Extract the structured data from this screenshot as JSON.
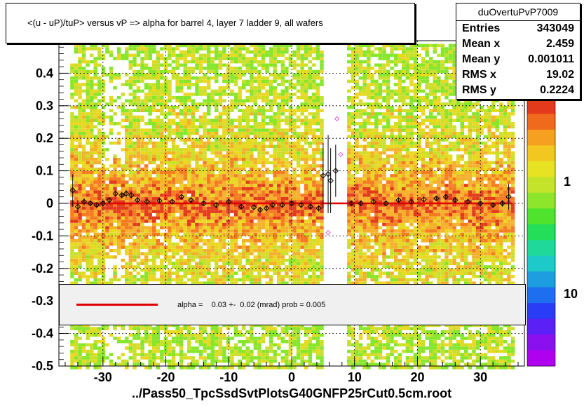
{
  "title": "<(u - uP)/tuP> versus   vP => alpha for barrel 4, layer 7 ladder 9, all wafers",
  "stats": {
    "name": "duOvertuPvP7009",
    "rows": [
      {
        "label": "Entries",
        "value": "343049"
      },
      {
        "label": "Mean x",
        "value": "2.459"
      },
      {
        "label": "Mean y",
        "value": "0.001011"
      },
      {
        "label": "RMS x",
        "value": "19.02"
      },
      {
        "label": "RMS y",
        "value": "0.2224"
      }
    ]
  },
  "fit_label": "alpha =    0.03 +-  0.02 (mrad) prob = 0.005",
  "filename": "../Pass50_TpcSsdSvtPlotsG40GNFP25rCut0.5cm.root",
  "chart_data": {
    "type": "heatmap",
    "xlim": [
      -37,
      37
    ],
    "ylim": [
      -0.5,
      0.5
    ],
    "xticks": [
      -30,
      -20,
      -10,
      0,
      10,
      20,
      30
    ],
    "yticks": [
      -0.5,
      -0.4,
      -0.3,
      -0.2,
      -0.1,
      0,
      0.1,
      0.2,
      0.3,
      0.4
    ],
    "ytick_labels": [
      "-0.5",
      "-0.4",
      "-0.3",
      "-0.2",
      "-0.1",
      "0",
      "0.1",
      "0.2",
      "0.3",
      "0.4"
    ],
    "colorbar_labels": [
      "1",
      "10"
    ],
    "grid": true,
    "fit_line": {
      "x": [
        -35,
        35
      ],
      "y": [
        0.0,
        0.0
      ],
      "color": "#e00000"
    },
    "profile_points": [
      {
        "x": -34.8,
        "y": 0.04,
        "err": 0.05
      },
      {
        "x": -34,
        "y": -0.01,
        "err": 0.02
      },
      {
        "x": -33,
        "y": 0.005,
        "err": 0.01
      },
      {
        "x": -32,
        "y": 0.0,
        "err": 0.008
      },
      {
        "x": -31,
        "y": -0.005,
        "err": 0.008
      },
      {
        "x": -30,
        "y": 0.0,
        "err": 0.008
      },
      {
        "x": -29,
        "y": 0.01,
        "err": 0.008
      },
      {
        "x": -28,
        "y": 0.03,
        "err": 0.01
      },
      {
        "x": -27,
        "y": 0.025,
        "err": 0.01
      },
      {
        "x": -26.3,
        "y": 0.03,
        "err": 0.01
      },
      {
        "x": -25.5,
        "y": 0.025,
        "err": 0.01
      },
      {
        "x": -24.5,
        "y": 0.01,
        "err": 0.008
      },
      {
        "x": -23,
        "y": 0.005,
        "err": 0.007
      },
      {
        "x": -21,
        "y": 0.008,
        "err": 0.007
      },
      {
        "x": -19,
        "y": 0.005,
        "err": 0.007
      },
      {
        "x": -17.5,
        "y": 0.02,
        "err": 0.007
      },
      {
        "x": -16,
        "y": 0.01,
        "err": 0.007
      },
      {
        "x": -14,
        "y": 0.0,
        "err": 0.007
      },
      {
        "x": -12,
        "y": -0.005,
        "err": 0.007
      },
      {
        "x": -10,
        "y": 0.005,
        "err": 0.007
      },
      {
        "x": -8,
        "y": -0.01,
        "err": 0.007
      },
      {
        "x": -6,
        "y": -0.012,
        "err": 0.007
      },
      {
        "x": -5,
        "y": -0.02,
        "err": 0.007
      },
      {
        "x": -4,
        "y": -0.015,
        "err": 0.007
      },
      {
        "x": -3,
        "y": -0.005,
        "err": 0.007
      },
      {
        "x": -1.5,
        "y": -0.005,
        "err": 0.007
      },
      {
        "x": 0,
        "y": 0.0,
        "err": 0.007
      },
      {
        "x": 1.5,
        "y": -0.005,
        "err": 0.007
      },
      {
        "x": 3,
        "y": -0.01,
        "err": 0.008
      },
      {
        "x": 4.3,
        "y": -0.015,
        "err": 0.01
      },
      {
        "x": 5,
        "y": 0.085,
        "err": 0.1
      },
      {
        "x": 5.8,
        "y": 0.09,
        "err": 0.12
      },
      {
        "x": 6.2,
        "y": 0.07,
        "err": 0.1
      },
      {
        "x": 7,
        "y": 0.1,
        "err": 0.08
      },
      {
        "x": 9.5,
        "y": 0.0,
        "err": 0.008
      },
      {
        "x": 11,
        "y": 0.0,
        "err": 0.007
      },
      {
        "x": 13,
        "y": 0.005,
        "err": 0.007
      },
      {
        "x": 15,
        "y": 0.0,
        "err": 0.007
      },
      {
        "x": 17,
        "y": 0.01,
        "err": 0.007
      },
      {
        "x": 19,
        "y": 0.005,
        "err": 0.007
      },
      {
        "x": 21,
        "y": 0.012,
        "err": 0.007
      },
      {
        "x": 23,
        "y": 0.015,
        "err": 0.007
      },
      {
        "x": 24.5,
        "y": 0.02,
        "err": 0.007
      },
      {
        "x": 26,
        "y": 0.01,
        "err": 0.007
      },
      {
        "x": 28,
        "y": 0.005,
        "err": 0.007
      },
      {
        "x": 30,
        "y": 0.0,
        "err": 0.008
      },
      {
        "x": 32,
        "y": -0.005,
        "err": 0.008
      },
      {
        "x": 33.5,
        "y": 0.0,
        "err": 0.01
      },
      {
        "x": 34.5,
        "y": 0.02,
        "err": 0.04
      }
    ],
    "outlier_points": [
      {
        "x": 7.2,
        "y": 0.26
      },
      {
        "x": 7.8,
        "y": 0.15
      },
      {
        "x": 5.8,
        "y": -0.09
      }
    ]
  }
}
